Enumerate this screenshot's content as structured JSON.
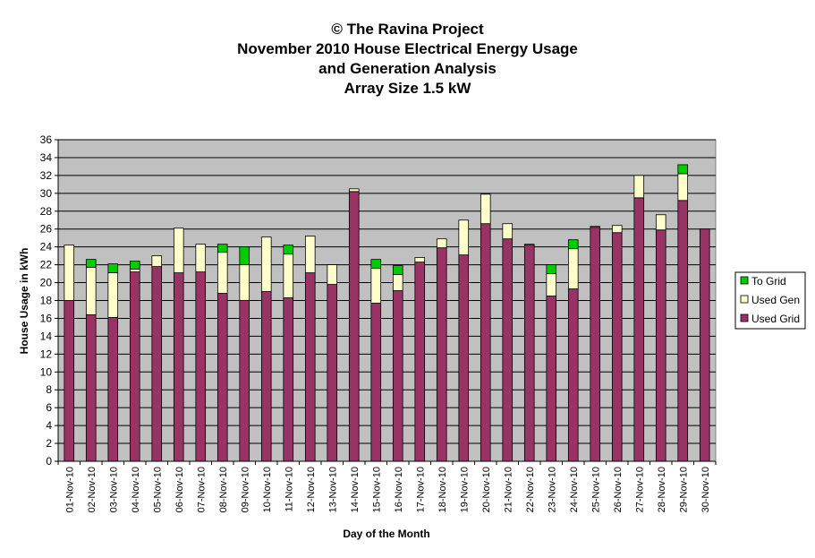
{
  "chart_data": {
    "type": "bar",
    "stacked": true,
    "title_lines": [
      "© The Ravina Project",
      "November 2010 House Electrical Energy Usage",
      "and Generation Analysis",
      "Array Size 1.5 kW"
    ],
    "xlabel": "Day of the Month",
    "ylabel": "House Usage in kWh",
    "ylim": [
      0,
      36
    ],
    "ytick_step": 2,
    "grid": true,
    "legend_position": "right",
    "plot_background": "#c0c0c0",
    "categories": [
      "01-Nov-10",
      "02-Nov-10",
      "03-Nov-10",
      "04-Nov-10",
      "05-Nov-10",
      "06-Nov-10",
      "07-Nov-10",
      "08-Nov-10",
      "09-Nov-10",
      "10-Nov-10",
      "11-Nov-10",
      "12-Nov-10",
      "13-Nov-10",
      "14-Nov-10",
      "15-Nov-10",
      "16-Nov-10",
      "17-Nov-10",
      "18-Nov-10",
      "19-Nov-10",
      "20-Nov-10",
      "21-Nov-10",
      "22-Nov-10",
      "23-Nov-10",
      "24-Nov-10",
      "25-Nov-10",
      "26-Nov-10",
      "27-Nov-10",
      "28-Nov-10",
      "29-Nov-10",
      "30-Nov-10"
    ],
    "series": [
      {
        "name": "Used Grid",
        "color": "#993366",
        "values": [
          18.0,
          16.4,
          16.1,
          21.2,
          21.8,
          21.1,
          21.2,
          18.8,
          18.0,
          19.0,
          18.3,
          21.1,
          19.8,
          30.2,
          17.7,
          19.1,
          22.3,
          23.9,
          23.1,
          26.6,
          24.9,
          24.2,
          18.5,
          19.3,
          26.2,
          25.6,
          29.5,
          25.9,
          29.2,
          26.0
        ]
      },
      {
        "name": "Used Gen",
        "color": "#ffffcc",
        "values": [
          6.2,
          5.3,
          5.0,
          0.3,
          1.2,
          5.0,
          3.1,
          4.6,
          4.0,
          6.1,
          4.9,
          4.1,
          2.2,
          0.3,
          3.9,
          1.8,
          0.5,
          1.0,
          3.9,
          3.3,
          1.7,
          0.1,
          2.5,
          4.5,
          0.1,
          0.8,
          2.5,
          1.7,
          3.0,
          0.0
        ]
      },
      {
        "name": "To Grid",
        "color": "#00cc00",
        "values": [
          0.0,
          0.9,
          1.0,
          0.9,
          0.0,
          0.0,
          0.0,
          0.9,
          2.0,
          0.0,
          1.0,
          0.0,
          0.0,
          0.0,
          1.0,
          1.0,
          0.0,
          0.0,
          0.0,
          0.0,
          0.0,
          0.0,
          1.0,
          1.0,
          0.0,
          0.0,
          0.0,
          0.0,
          1.0,
          0.0
        ]
      }
    ]
  }
}
